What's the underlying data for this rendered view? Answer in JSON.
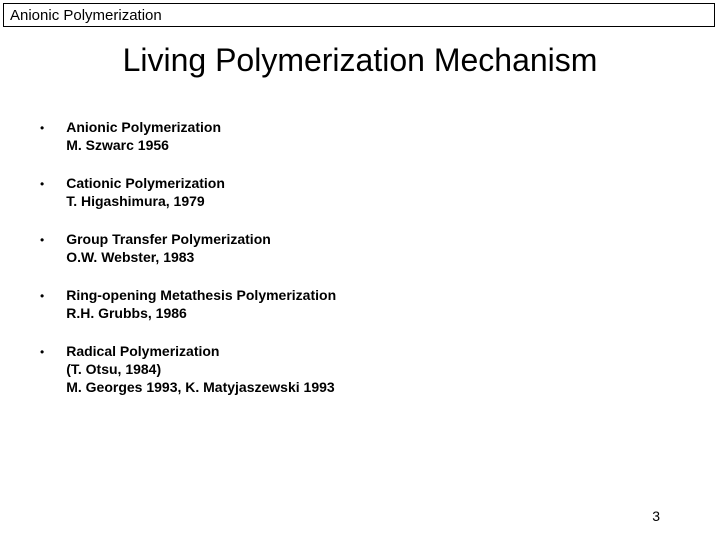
{
  "header": {
    "label": "Anionic Polymerization"
  },
  "title": "Living Polymerization Mechanism",
  "bullets": [
    {
      "title": "Anionic Polymerization",
      "lines": [
        "M. Szwarc 1956"
      ]
    },
    {
      "title": "Cationic Polymerization",
      "lines": [
        "T. Higashimura, 1979"
      ]
    },
    {
      "title": "Group Transfer Polymerization",
      "lines": [
        "O.W. Webster, 1983"
      ]
    },
    {
      "title": "Ring-opening Metathesis Polymerization",
      "lines": [
        "R.H. Grubbs, 1986"
      ]
    },
    {
      "title": "Radical Polymerization",
      "lines": [
        "(T. Otsu, 1984)",
        "M. Georges 1993, K. Matyjaszewski 1993"
      ]
    }
  ],
  "page_number": "3",
  "style": {
    "background_color": "#ffffff",
    "text_color": "#000000",
    "border_color": "#000000",
    "title_fontsize": 32,
    "header_fontsize": 15,
    "bullet_fontsize": 14,
    "bullet_fontweight": "bold",
    "bullet_marker": "•"
  }
}
